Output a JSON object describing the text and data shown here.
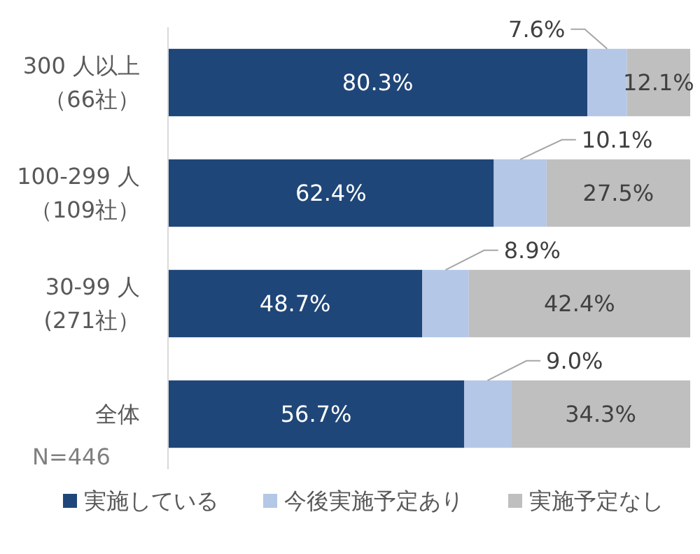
{
  "chart_data": {
    "type": "bar",
    "orientation": "horizontal",
    "stacked": true,
    "categories": [
      "300 人以上（66社）",
      "100-299 人（109社）",
      "30-99 人(271社）",
      "全体"
    ],
    "xlim": [
      0,
      100
    ],
    "series": [
      {
        "name": "実施している",
        "color": "#1f4678",
        "values": [
          80.3,
          62.4,
          48.7,
          56.7
        ],
        "value_labels": [
          "80.3%",
          "62.4%",
          "48.7%",
          "56.7%"
        ]
      },
      {
        "name": "今後実施予定あり",
        "color": "#b4c7e7",
        "values": [
          7.6,
          10.1,
          8.9,
          9.0
        ],
        "value_labels": [
          "7.6%",
          "10.1%",
          "8.9%",
          "9.0%"
        ]
      },
      {
        "name": "実施予定なし",
        "color": "#bfbfbf",
        "values": [
          12.1,
          27.5,
          42.4,
          34.3
        ],
        "value_labels": [
          "12.1%",
          "27.5%",
          "42.4%",
          "34.3%"
        ]
      }
    ],
    "legend": "bottom",
    "annotations": [
      "N=446"
    ]
  }
}
